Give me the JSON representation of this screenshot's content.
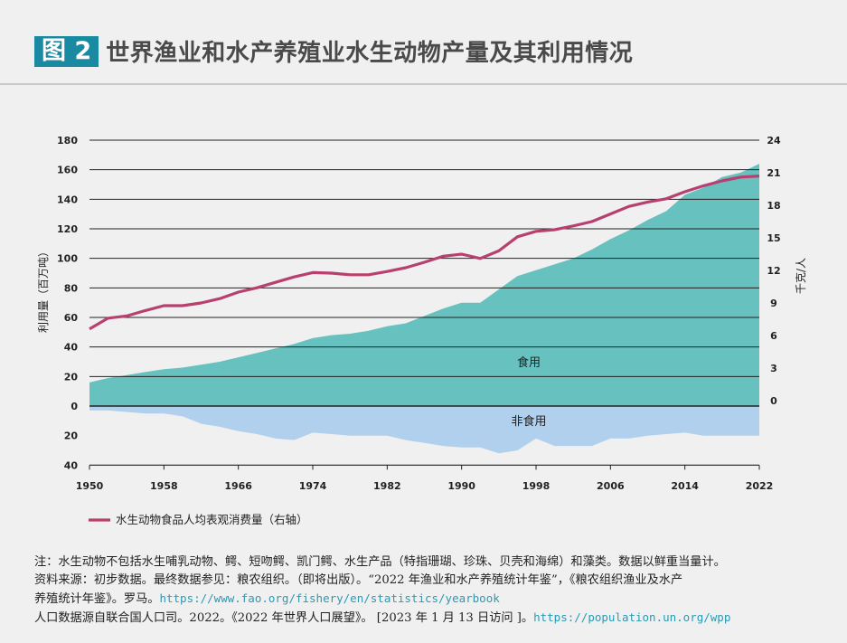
{
  "header": {
    "badge": "图 2",
    "title": "世界渔业和水产养殖业水生动物产量及其利用情况"
  },
  "chart_data": {
    "type": "area",
    "x": [
      1950,
      1952,
      1954,
      1956,
      1958,
      1960,
      1962,
      1964,
      1966,
      1968,
      1970,
      1972,
      1974,
      1976,
      1978,
      1980,
      1982,
      1984,
      1986,
      1988,
      1990,
      1992,
      1994,
      1996,
      1998,
      2000,
      2002,
      2004,
      2006,
      2008,
      2010,
      2012,
      2014,
      2016,
      2018,
      2020,
      2022
    ],
    "x_ticks": [
      1950,
      1958,
      1966,
      1974,
      1982,
      1990,
      1998,
      2006,
      2014,
      2022
    ],
    "ylabel": "利用量（百万吨）",
    "ylabel_right": "千克/人",
    "y_ticks_up": [
      0,
      20,
      40,
      60,
      80,
      100,
      120,
      140,
      160,
      180
    ],
    "y_ticks_down": [
      20,
      40
    ],
    "y_right_ticks": [
      0,
      3,
      6,
      9,
      12,
      15,
      18,
      21,
      24
    ],
    "ylim": [
      -40,
      180
    ],
    "ylim_right": [
      0,
      24
    ],
    "grid": true,
    "series": [
      {
        "name": "食用",
        "kind": "area-up",
        "color": "#66c1bf",
        "values": [
          16,
          19,
          21,
          23,
          25,
          26,
          28,
          30,
          33,
          36,
          39,
          42,
          46,
          48,
          49,
          51,
          54,
          56,
          61,
          66,
          70,
          70,
          79,
          88,
          92,
          96,
          100,
          106,
          113,
          119,
          126,
          132,
          143,
          148,
          155,
          158,
          164
        ]
      },
      {
        "name": "非食用",
        "kind": "area-down",
        "color": "#b1d0ed",
        "values": [
          3,
          3,
          4,
          5,
          5,
          7,
          12,
          14,
          17,
          19,
          22,
          23,
          18,
          19,
          20,
          20,
          20,
          23,
          25,
          27,
          28,
          28,
          32,
          30,
          22,
          27,
          27,
          27,
          22,
          22,
          20,
          19,
          18,
          20,
          20,
          20,
          20
        ]
      },
      {
        "name": "水生动物食品人均表观消费量（右轴）",
        "kind": "line",
        "axis": "right",
        "color": "#b8406e",
        "values": [
          6.6,
          7.6,
          7.8,
          8.3,
          8.75,
          8.75,
          9.0,
          9.4,
          10.0,
          10.4,
          10.9,
          11.4,
          11.8,
          11.75,
          11.6,
          11.6,
          11.9,
          12.25,
          12.75,
          13.3,
          13.5,
          13.1,
          13.8,
          15.1,
          15.6,
          15.75,
          16.1,
          16.5,
          17.2,
          17.9,
          18.3,
          18.6,
          19.25,
          19.8,
          20.25,
          20.6,
          20.7
        ]
      }
    ],
    "legend_position": "bottom-left"
  },
  "notes": {
    "line1": "注：水生动物不包括水生哺乳动物、鳄、短吻鳄、凯门鳄、水生产品（特指珊瑚、珍珠、贝壳和海绵）和藻类。数据以鲜重当量计。",
    "line2": "资料来源：初步数据。最终数据参见：粮农组织。（即将出版）。“2022 年渔业和水产养殖统计年鉴”，《粮农组织渔业及水产",
    "line3_text": "养殖统计年鉴》。罗马。",
    "line3_link": "https://www.fao.org/fishery/en/statistics/yearbook",
    "line4_text": "人口数据源自联合国人口司。2022。《2022 年世界人口展望》。 [2023 年 1 月 13 日访问 ]。",
    "line4_link": "https://population.un.org/wpp"
  }
}
